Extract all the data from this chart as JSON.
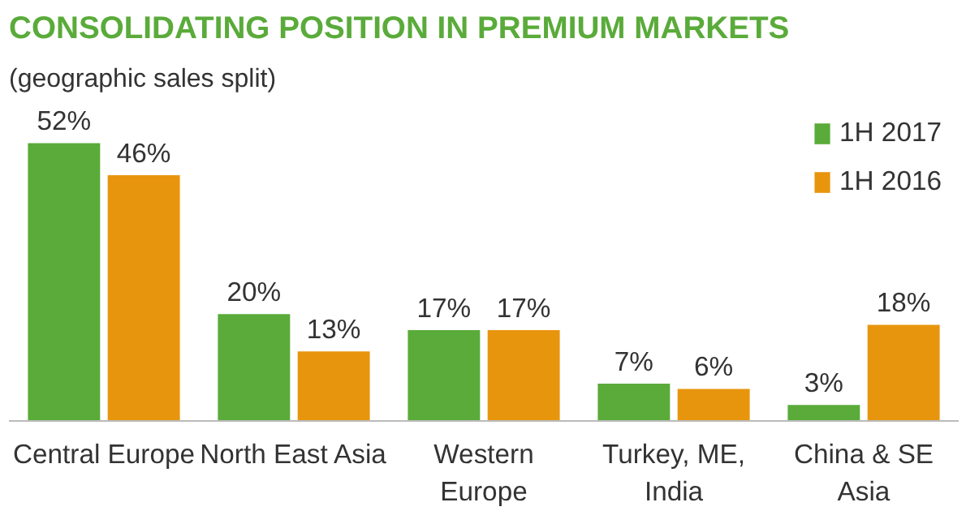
{
  "chart_data": {
    "type": "bar",
    "title": "CONSOLIDATING POSITION IN PREMIUM MARKETS",
    "subtitle": "(geographic sales split)",
    "categories": [
      "Central Europe",
      "North East Asia",
      "Western\nEurope",
      "Turkey, ME,\nIndia",
      "China & SE\nAsia"
    ],
    "series": [
      {
        "name": "1H 2017",
        "color": "#5aab3a",
        "values": [
          52,
          20,
          17,
          7,
          3
        ],
        "value_labels": [
          "52%",
          "20%",
          "17%",
          "7%",
          "3%"
        ]
      },
      {
        "name": "1H 2016",
        "color": "#e8950e",
        "values": [
          46,
          13,
          17,
          6,
          18
        ],
        "value_labels": [
          "46%",
          "13%",
          "17%",
          "6%",
          "18%"
        ]
      }
    ],
    "legend": "top right",
    "grid": false
  }
}
